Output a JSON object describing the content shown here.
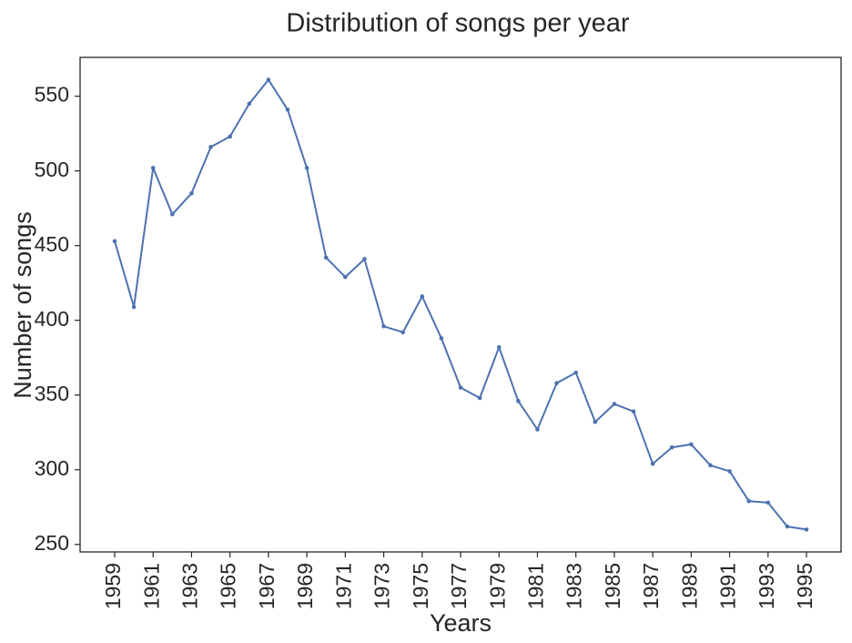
{
  "chart_data": {
    "type": "line",
    "title": "Distribution of songs per year",
    "xlabel": "Years",
    "ylabel": "Number of songs",
    "x": [
      1959,
      1960,
      1961,
      1962,
      1963,
      1964,
      1965,
      1966,
      1967,
      1968,
      1969,
      1970,
      1971,
      1972,
      1973,
      1974,
      1975,
      1976,
      1977,
      1978,
      1979,
      1980,
      1981,
      1982,
      1983,
      1984,
      1985,
      1986,
      1987,
      1988,
      1989,
      1990,
      1991,
      1992,
      1993,
      1994,
      1995
    ],
    "series": [
      {
        "values": [
          453,
          409,
          502,
          471,
          485,
          516,
          523,
          545,
          561,
          541,
          502,
          442,
          429,
          441,
          396,
          392,
          416,
          388,
          355,
          348,
          382,
          346,
          327,
          358,
          365,
          332,
          344,
          339,
          304,
          315,
          317,
          303,
          299,
          279,
          278,
          262,
          260
        ]
      }
    ],
    "xticks": [
      "1959",
      "1961",
      "1963",
      "1965",
      "1967",
      "1969",
      "1971",
      "1973",
      "1975",
      "1977",
      "1979",
      "1981",
      "1983",
      "1985",
      "1987",
      "1989",
      "1991",
      "1993",
      "1995"
    ],
    "yticks": [
      "250",
      "300",
      "350",
      "400",
      "450",
      "500",
      "550"
    ],
    "xlim": [
      1957.2,
      1996.8
    ],
    "ylim": [
      245,
      576
    ],
    "line_color": "#4c72b0",
    "grid": false
  }
}
